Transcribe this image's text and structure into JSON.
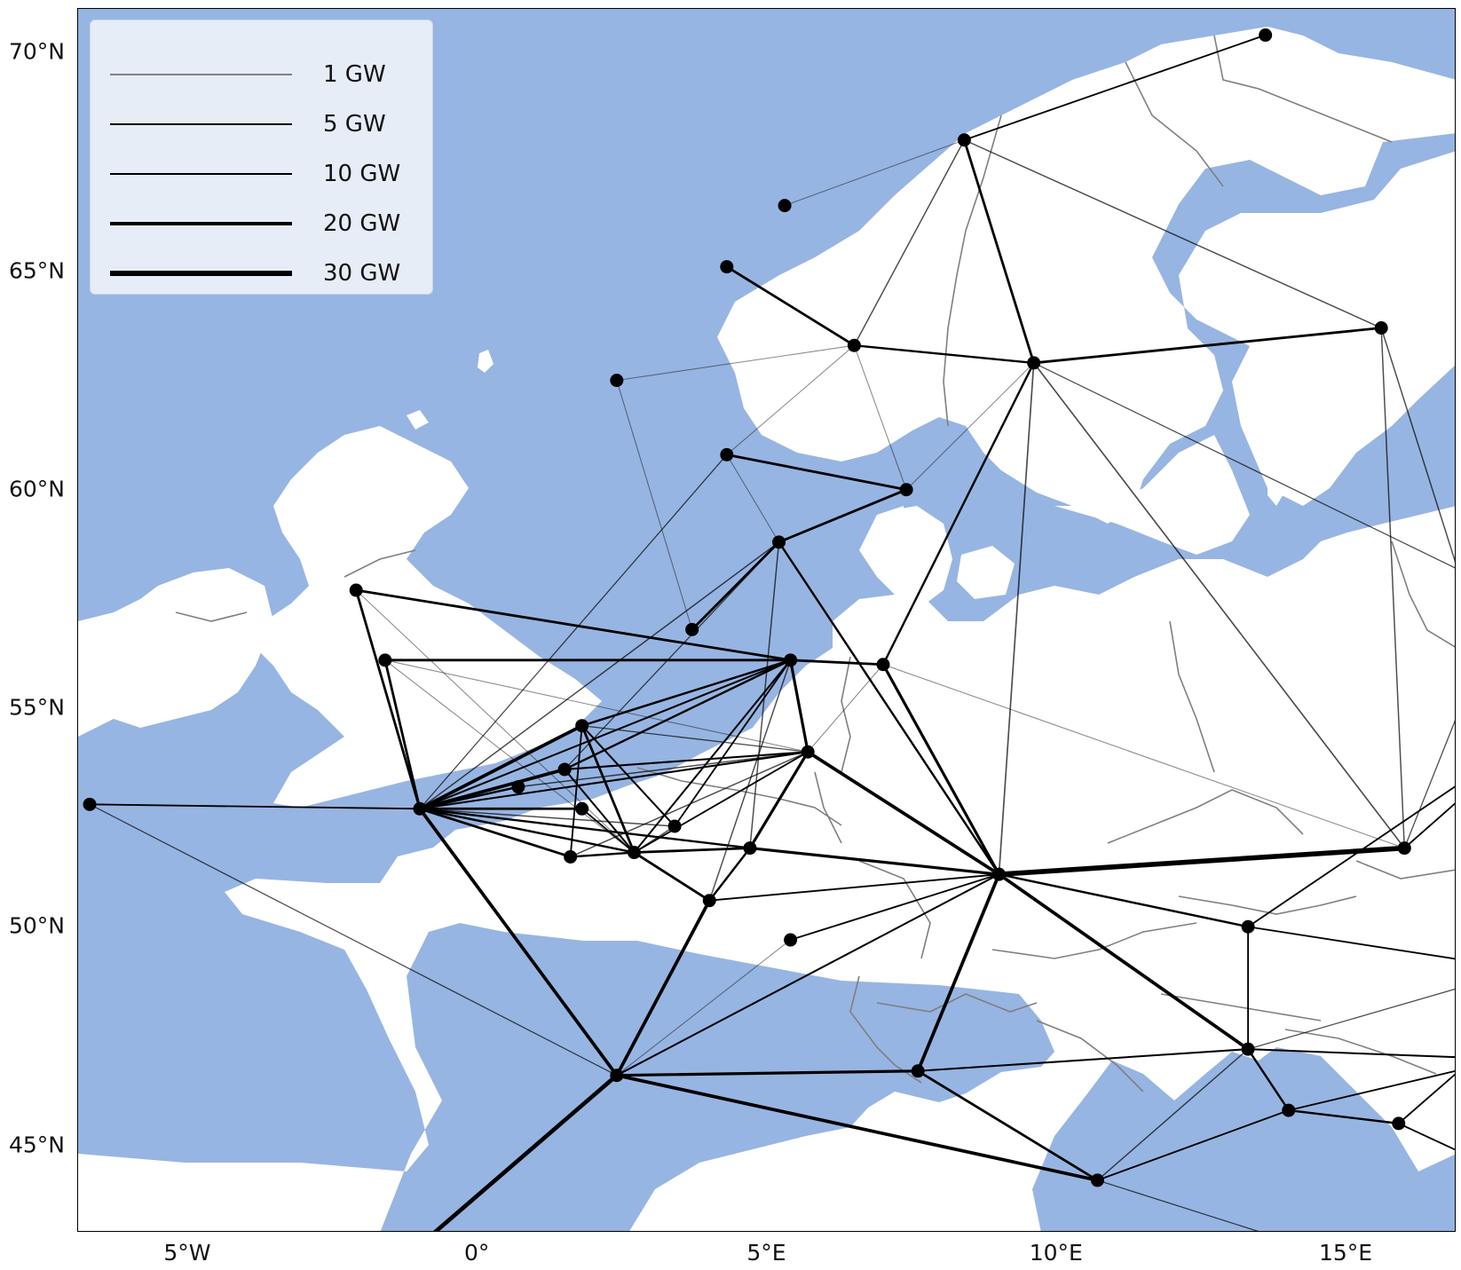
{
  "map": {
    "title": "",
    "projection": "PlateCarree",
    "extent": {
      "lon_min": -6.9,
      "lon_max": 16.9,
      "lat_min": 43.0,
      "lat_max": 71.0
    },
    "colors": {
      "ocean": "#97b5e2",
      "land": "#ffffff",
      "border": "#7f7f7f",
      "line": "#000000",
      "node": "#000000"
    },
    "lat_ticks": [
      {
        "value": 70,
        "label": "70°N"
      },
      {
        "value": 65,
        "label": "65°N"
      },
      {
        "value": 60,
        "label": "60°N"
      },
      {
        "value": 55,
        "label": "55°N"
      },
      {
        "value": 50,
        "label": "50°N"
      },
      {
        "value": 45,
        "label": "45°N"
      }
    ],
    "lon_ticks": [
      {
        "value": -5,
        "label": "5°W"
      },
      {
        "value": 0,
        "label": "0°"
      },
      {
        "value": 5,
        "label": "5°E"
      },
      {
        "value": 10,
        "label": "10°E"
      },
      {
        "value": 15,
        "label": "15°E"
      }
    ]
  },
  "legend": {
    "placement": "upper-left",
    "entries": [
      {
        "label": "1 GW",
        "capacity_gw": 1
      },
      {
        "label": "5 GW",
        "capacity_gw": 5
      },
      {
        "label": "10 GW",
        "capacity_gw": 10
      },
      {
        "label": "20 GW",
        "capacity_gw": 20
      },
      {
        "label": "30 GW",
        "capacity_gw": 30
      }
    ]
  },
  "chart_data": {
    "type": "network-map",
    "nodes": [
      {
        "id": "n_nordkapp",
        "lon": 13.6,
        "lat": 70.4
      },
      {
        "id": "n_lofoten",
        "lon": 8.4,
        "lat": 68.0
      },
      {
        "id": "n_norsea_far",
        "lon": 5.3,
        "lat": 66.5
      },
      {
        "id": "n_nwnorway",
        "lon": 4.3,
        "lat": 65.1
      },
      {
        "id": "n_midnorway",
        "lon": 6.5,
        "lat": 63.3
      },
      {
        "id": "n_jamtland",
        "lon": 9.6,
        "lat": 62.9
      },
      {
        "id": "n_finland_n",
        "lon": 15.6,
        "lat": 63.7
      },
      {
        "id": "n_shetland_off",
        "lon": 2.4,
        "lat": 62.5
      },
      {
        "id": "n_bergen",
        "lon": 4.3,
        "lat": 60.8
      },
      {
        "id": "n_oslo",
        "lon": 7.4,
        "lat": 60.0
      },
      {
        "id": "n_snorway",
        "lon": 5.2,
        "lat": 58.8
      },
      {
        "id": "n_ns_central",
        "lon": 3.7,
        "lat": 56.8
      },
      {
        "id": "n_scotland",
        "lon": -2.1,
        "lat": 57.7
      },
      {
        "id": "n_ns_dk",
        "lon": 5.4,
        "lat": 56.1
      },
      {
        "id": "n_denmark",
        "lon": 7.0,
        "lat": 56.0
      },
      {
        "id": "n_ne_england",
        "lon": -1.6,
        "lat": 56.1
      },
      {
        "id": "n_dogger",
        "lon": 1.8,
        "lat": 54.6
      },
      {
        "id": "n_ns_de",
        "lon": 5.7,
        "lat": 54.0
      },
      {
        "id": "n_hornsea",
        "lon": 1.5,
        "lat": 53.6
      },
      {
        "id": "n_humber",
        "lon": 0.7,
        "lat": 53.2
      },
      {
        "id": "n_ireland",
        "lon": -6.7,
        "lat": 52.8
      },
      {
        "id": "n_england",
        "lon": -1.0,
        "lat": 52.7
      },
      {
        "id": "n_norfolk",
        "lon": 1.8,
        "lat": 52.7
      },
      {
        "id": "n_ns_nl",
        "lon": 3.4,
        "lat": 52.3
      },
      {
        "id": "n_netherlands",
        "lon": 4.7,
        "lat": 51.8
      },
      {
        "id": "n_thames_e",
        "lon": 2.7,
        "lat": 51.7
      },
      {
        "id": "n_thames",
        "lon": 1.6,
        "lat": 51.6
      },
      {
        "id": "n_belgium",
        "lon": 4.0,
        "lat": 50.6
      },
      {
        "id": "n_germany",
        "lon": 9.0,
        "lat": 51.2
      },
      {
        "id": "n_poland",
        "lon": 16.0,
        "lat": 51.8
      },
      {
        "id": "n_luxembourg",
        "lon": 5.4,
        "lat": 49.7
      },
      {
        "id": "n_czechia",
        "lon": 13.3,
        "lat": 50.0
      },
      {
        "id": "n_france",
        "lon": 2.4,
        "lat": 46.6
      },
      {
        "id": "n_switzerland",
        "lon": 7.6,
        "lat": 46.7
      },
      {
        "id": "n_austria",
        "lon": 13.3,
        "lat": 47.2
      },
      {
        "id": "n_slovenia",
        "lon": 14.0,
        "lat": 45.8
      },
      {
        "id": "n_croatia",
        "lon": 15.9,
        "lat": 45.5
      },
      {
        "id": "n_italy",
        "lon": 10.7,
        "lat": 44.2
      }
    ],
    "lines": [
      {
        "from": "n_lofoten",
        "to": "n_nordkapp",
        "capacity_gw": 5
      },
      {
        "from": "n_lofoten",
        "to": "n_norsea_far",
        "capacity_gw": 1
      },
      {
        "from": "n_lofoten",
        "to": "n_jamtland",
        "capacity_gw": 10
      },
      {
        "from": "n_lofoten",
        "to": "n_midnorway",
        "capacity_gw": 3
      },
      {
        "from": "n_lofoten",
        "to": "n_finland_n",
        "capacity_gw": 3
      },
      {
        "from": "n_nwnorway",
        "to": "n_midnorway",
        "capacity_gw": 10
      },
      {
        "from": "n_midnorway",
        "to": "n_jamtland",
        "capacity_gw": 8
      },
      {
        "from": "n_midnorway",
        "to": "n_bergen",
        "capacity_gw": 1
      },
      {
        "from": "n_midnorway",
        "to": "n_oslo",
        "capacity_gw": 1
      },
      {
        "from": "n_jamtland",
        "to": "n_finland_n",
        "capacity_gw": 10
      },
      {
        "from": "n_jamtland",
        "to": "n_denmark",
        "capacity_gw": 8
      },
      {
        "from": "n_jamtland",
        "to": "n_germany",
        "capacity_gw": 4
      },
      {
        "from": "n_jamtland",
        "to": "n_poland",
        "capacity_gw": 4
      },
      {
        "from": "n_jamtland",
        "to": "n_oslo",
        "capacity_gw": 1
      },
      {
        "from": "n_finland_n",
        "to": "n_poland",
        "capacity_gw": 3
      },
      {
        "from": "n_shetland_off",
        "to": "n_midnorway",
        "capacity_gw": 1
      },
      {
        "from": "n_shetland_off",
        "to": "n_ns_central",
        "capacity_gw": 1
      },
      {
        "from": "n_bergen",
        "to": "n_oslo",
        "capacity_gw": 10
      },
      {
        "from": "n_bergen",
        "to": "n_england",
        "capacity_gw": 2
      },
      {
        "from": "n_bergen",
        "to": "n_snorway",
        "capacity_gw": 1
      },
      {
        "from": "n_oslo",
        "to": "n_snorway",
        "capacity_gw": 10
      },
      {
        "from": "n_snorway",
        "to": "n_ns_central",
        "capacity_gw": 10
      },
      {
        "from": "n_snorway",
        "to": "n_germany",
        "capacity_gw": 8
      },
      {
        "from": "n_snorway",
        "to": "n_england",
        "capacity_gw": 3
      },
      {
        "from": "n_snorway",
        "to": "n_hornsea",
        "capacity_gw": 2
      },
      {
        "from": "n_snorway",
        "to": "n_netherlands",
        "capacity_gw": 3
      },
      {
        "from": "n_scotland",
        "to": "n_ns_dk",
        "capacity_gw": 10
      },
      {
        "from": "n_scotland",
        "to": "n_england",
        "capacity_gw": 10
      },
      {
        "from": "n_scotland",
        "to": "n_thames_e",
        "capacity_gw": 1
      },
      {
        "from": "n_ne_england",
        "to": "n_ns_dk",
        "capacity_gw": 10
      },
      {
        "from": "n_ne_england",
        "to": "n_england",
        "capacity_gw": 10
      },
      {
        "from": "n_ne_england",
        "to": "n_ns_de",
        "capacity_gw": 1
      },
      {
        "from": "n_ne_england",
        "to": "n_thames_e",
        "capacity_gw": 1
      },
      {
        "from": "n_ns_dk",
        "to": "n_denmark",
        "capacity_gw": 10
      },
      {
        "from": "n_ns_dk",
        "to": "n_ns_de",
        "capacity_gw": 12
      },
      {
        "from": "n_ns_dk",
        "to": "n_dogger",
        "capacity_gw": 8
      },
      {
        "from": "n_ns_dk",
        "to": "n_hornsea",
        "capacity_gw": 8
      },
      {
        "from": "n_ns_dk",
        "to": "n_thames_e",
        "capacity_gw": 6
      },
      {
        "from": "n_ns_dk",
        "to": "n_england",
        "capacity_gw": 6
      },
      {
        "from": "n_ns_dk",
        "to": "n_ns_nl",
        "capacity_gw": 5
      },
      {
        "from": "n_ns_dk",
        "to": "n_belgium",
        "capacity_gw": 3
      },
      {
        "from": "n_denmark",
        "to": "n_germany",
        "capacity_gw": 12
      },
      {
        "from": "n_denmark",
        "to": "n_poland",
        "capacity_gw": 1
      },
      {
        "from": "n_denmark",
        "to": "n_ns_de",
        "capacity_gw": 1
      },
      {
        "from": "n_dogger",
        "to": "n_england",
        "capacity_gw": 15
      },
      {
        "from": "n_dogger",
        "to": "n_thames_e",
        "capacity_gw": 10
      },
      {
        "from": "n_dogger",
        "to": "n_ns_nl",
        "capacity_gw": 6
      },
      {
        "from": "n_dogger",
        "to": "n_thames",
        "capacity_gw": 5
      },
      {
        "from": "n_dogger",
        "to": "n_ns_de",
        "capacity_gw": 2
      },
      {
        "from": "n_ns_de",
        "to": "n_germany",
        "capacity_gw": 15
      },
      {
        "from": "n_ns_de",
        "to": "n_netherlands",
        "capacity_gw": 12
      },
      {
        "from": "n_ns_de",
        "to": "n_england",
        "capacity_gw": 6
      },
      {
        "from": "n_ns_de",
        "to": "n_hornsea",
        "capacity_gw": 6
      },
      {
        "from": "n_ns_de",
        "to": "n_thames_e",
        "capacity_gw": 5
      },
      {
        "from": "n_ns_de",
        "to": "n_humber",
        "capacity_gw": 3
      },
      {
        "from": "n_ns_de",
        "to": "n_thames",
        "capacity_gw": 3
      },
      {
        "from": "n_hornsea",
        "to": "n_england",
        "capacity_gw": 15
      },
      {
        "from": "n_hornsea",
        "to": "n_thames_e",
        "capacity_gw": 6
      },
      {
        "from": "n_humber",
        "to": "n_england",
        "capacity_gw": 8
      },
      {
        "from": "n_ireland",
        "to": "n_england",
        "capacity_gw": 5
      },
      {
        "from": "n_ireland",
        "to": "n_france",
        "capacity_gw": 2
      },
      {
        "from": "n_england",
        "to": "n_norfolk",
        "capacity_gw": 10
      },
      {
        "from": "n_england",
        "to": "n_thames",
        "capacity_gw": 10
      },
      {
        "from": "n_england",
        "to": "n_thames_e",
        "capacity_gw": 8
      },
      {
        "from": "n_england",
        "to": "n_netherlands",
        "capacity_gw": 8
      },
      {
        "from": "n_england",
        "to": "n_ns_nl",
        "capacity_gw": 3
      },
      {
        "from": "n_england",
        "to": "n_france",
        "capacity_gw": 15
      },
      {
        "from": "n_norfolk",
        "to": "n_thames_e",
        "capacity_gw": 5
      },
      {
        "from": "n_ns_nl",
        "to": "n_thames_e",
        "capacity_gw": 3
      },
      {
        "from": "n_thames",
        "to": "n_thames_e",
        "capacity_gw": 8
      },
      {
        "from": "n_thames_e",
        "to": "n_netherlands",
        "capacity_gw": 10
      },
      {
        "from": "n_thames_e",
        "to": "n_belgium",
        "capacity_gw": 10
      },
      {
        "from": "n_netherlands",
        "to": "n_germany",
        "capacity_gw": 12
      },
      {
        "from": "n_netherlands",
        "to": "n_belgium",
        "capacity_gw": 8
      },
      {
        "from": "n_belgium",
        "to": "n_germany",
        "capacity_gw": 5
      },
      {
        "from": "n_belgium",
        "to": "n_france",
        "capacity_gw": 15
      },
      {
        "from": "n_germany",
        "to": "n_poland",
        "capacity_gw": 25
      },
      {
        "from": "n_germany",
        "to": "n_czechia",
        "capacity_gw": 8
      },
      {
        "from": "n_germany",
        "to": "n_austria",
        "capacity_gw": 15
      },
      {
        "from": "n_germany",
        "to": "n_switzerland",
        "capacity_gw": 15
      },
      {
        "from": "n_germany",
        "to": "n_france",
        "capacity_gw": 6
      },
      {
        "from": "n_germany",
        "to": "n_luxembourg",
        "capacity_gw": 5
      },
      {
        "from": "n_luxembourg",
        "to": "n_france",
        "capacity_gw": 1
      },
      {
        "from": "n_france",
        "to": "n_switzerland",
        "capacity_gw": 12
      },
      {
        "from": "n_france",
        "to": "n_italy",
        "capacity_gw": 15
      },
      {
        "from": "n_switzerland",
        "to": "n_italy",
        "capacity_gw": 10
      },
      {
        "from": "n_switzerland",
        "to": "n_austria",
        "capacity_gw": 6
      },
      {
        "from": "n_austria",
        "to": "n_czechia",
        "capacity_gw": 5
      },
      {
        "from": "n_austria",
        "to": "n_slovenia",
        "capacity_gw": 8
      },
      {
        "from": "n_austria",
        "to": "n_italy",
        "capacity_gw": 3
      },
      {
        "from": "n_slovenia",
        "to": "n_croatia",
        "capacity_gw": 8
      },
      {
        "from": "n_slovenia",
        "to": "n_italy",
        "capacity_gw": 5
      }
    ],
    "edge_lines": [
      {
        "from": "n_france",
        "to_lon": -1.1,
        "to_lat": 42.6,
        "capacity_gw": 20
      },
      {
        "from": "n_poland",
        "to_lon": 17.2,
        "to_lat": 53.2,
        "capacity_gw": 5
      },
      {
        "from": "n_poland",
        "to_lon": 17.2,
        "to_lat": 55.8,
        "capacity_gw": 2
      },
      {
        "from": "n_czechia",
        "to_lon": 17.2,
        "to_lat": 49.2,
        "capacity_gw": 5
      },
      {
        "from": "n_czechia",
        "to_lon": 17.2,
        "to_lat": 53.5,
        "capacity_gw": 5
      },
      {
        "from": "n_austria",
        "to_lon": 17.2,
        "to_lat": 48.7,
        "capacity_gw": 2
      },
      {
        "from": "n_austria",
        "to_lon": 17.2,
        "to_lat": 47.0,
        "capacity_gw": 6
      },
      {
        "from": "n_slovenia",
        "to_lon": 17.2,
        "to_lat": 46.8,
        "capacity_gw": 5
      },
      {
        "from": "n_croatia",
        "to_lon": 17.2,
        "to_lat": 44.7,
        "capacity_gw": 5
      },
      {
        "from": "n_croatia",
        "to_lon": 17.2,
        "to_lat": 47.0,
        "capacity_gw": 5
      },
      {
        "from": "n_italy",
        "to_lon": 14.5,
        "to_lat": 42.6,
        "capacity_gw": 2
      },
      {
        "from": "n_finland_n",
        "to_lon": 17.2,
        "to_lat": 57.0,
        "capacity_gw": 3
      },
      {
        "from": "n_jamtland",
        "to_lon": 17.2,
        "to_lat": 58.0,
        "capacity_gw": 2
      }
    ]
  }
}
